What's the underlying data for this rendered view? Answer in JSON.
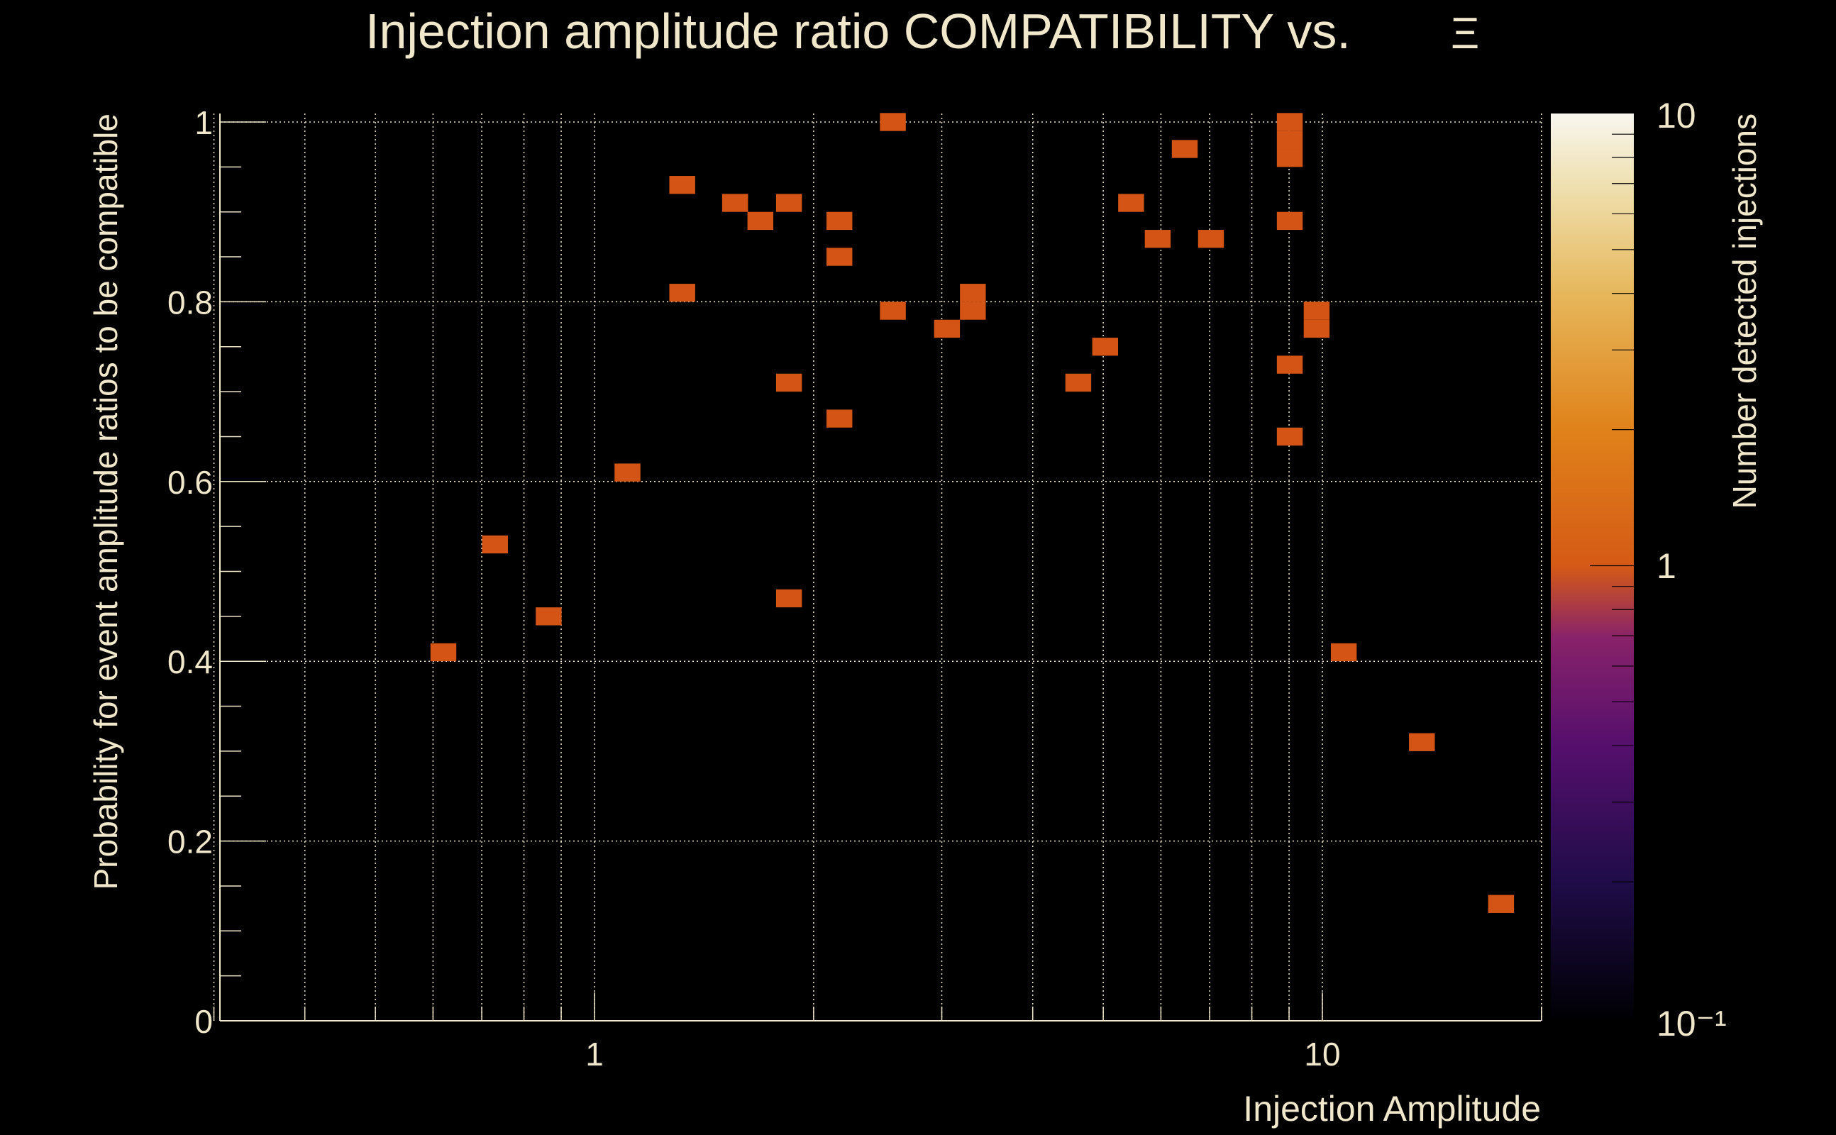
{
  "chart_data": {
    "type": "heatmap",
    "title": "Injection amplitude ratio COMPATIBILITY vs.",
    "title_symbol": "Ξ",
    "xlabel": "Injection Amplitude",
    "ylabel": "Probability for event amplitude ratios to be compatible",
    "xscale": "log",
    "xlim": [
      0.3,
      20
    ],
    "ylim": [
      0,
      1
    ],
    "x_tick_labels": [
      "1",
      "10"
    ],
    "x_ticks": [
      1,
      10
    ],
    "y_tick_labels": [
      "0",
      "0.2",
      "0.4",
      "0.6",
      "0.8",
      "1"
    ],
    "y_ticks": [
      0,
      0.2,
      0.4,
      0.6,
      0.8,
      1.0
    ],
    "grid": true,
    "colorbar": {
      "label": "Number detected injections",
      "scale": "log",
      "range": [
        0.1,
        10
      ],
      "tick_labels": [
        "10",
        "1",
        "10⁻¹"
      ],
      "ticks": [
        10,
        1,
        0.1
      ]
    },
    "bin_width_log10": 0.0355,
    "bin_height": 0.02,
    "bins": [
      {
        "x": 0.62,
        "y": 0.41,
        "count": 1
      },
      {
        "x": 0.73,
        "y": 0.53,
        "count": 1
      },
      {
        "x": 0.865,
        "y": 0.45,
        "count": 1
      },
      {
        "x": 1.11,
        "y": 0.61,
        "count": 1
      },
      {
        "x": 1.32,
        "y": 0.93,
        "count": 1
      },
      {
        "x": 1.32,
        "y": 0.81,
        "count": 1
      },
      {
        "x": 1.56,
        "y": 0.91,
        "count": 1
      },
      {
        "x": 1.69,
        "y": 0.89,
        "count": 1
      },
      {
        "x": 1.85,
        "y": 0.91,
        "count": 1
      },
      {
        "x": 1.85,
        "y": 0.71,
        "count": 1
      },
      {
        "x": 1.85,
        "y": 0.47,
        "count": 1
      },
      {
        "x": 2.17,
        "y": 0.89,
        "count": 1
      },
      {
        "x": 2.17,
        "y": 0.85,
        "count": 1
      },
      {
        "x": 2.17,
        "y": 0.67,
        "count": 1
      },
      {
        "x": 2.57,
        "y": 1.0,
        "count": 1
      },
      {
        "x": 2.57,
        "y": 0.79,
        "count": 1
      },
      {
        "x": 3.05,
        "y": 0.77,
        "count": 1
      },
      {
        "x": 3.31,
        "y": 0.81,
        "count": 1
      },
      {
        "x": 3.31,
        "y": 0.79,
        "count": 1
      },
      {
        "x": 4.62,
        "y": 0.71,
        "count": 1
      },
      {
        "x": 5.03,
        "y": 0.75,
        "count": 1
      },
      {
        "x": 5.46,
        "y": 0.91,
        "count": 1
      },
      {
        "x": 5.94,
        "y": 0.87,
        "count": 1
      },
      {
        "x": 6.47,
        "y": 0.97,
        "count": 1
      },
      {
        "x": 7.03,
        "y": 0.87,
        "count": 1
      },
      {
        "x": 9.02,
        "y": 1.0,
        "count": 1
      },
      {
        "x": 9.02,
        "y": 0.98,
        "count": 1
      },
      {
        "x": 9.02,
        "y": 0.96,
        "count": 1
      },
      {
        "x": 9.02,
        "y": 0.89,
        "count": 1
      },
      {
        "x": 9.02,
        "y": 0.73,
        "count": 1
      },
      {
        "x": 9.02,
        "y": 0.65,
        "count": 1
      },
      {
        "x": 9.82,
        "y": 0.79,
        "count": 1
      },
      {
        "x": 9.82,
        "y": 0.77,
        "count": 1
      },
      {
        "x": 10.7,
        "y": 0.41,
        "count": 1
      },
      {
        "x": 13.7,
        "y": 0.31,
        "count": 1
      },
      {
        "x": 17.6,
        "y": 0.13,
        "count": 1
      }
    ],
    "colors": {
      "count_1": "#d35414",
      "text": "#f1e7cb",
      "background": "#000000"
    }
  }
}
